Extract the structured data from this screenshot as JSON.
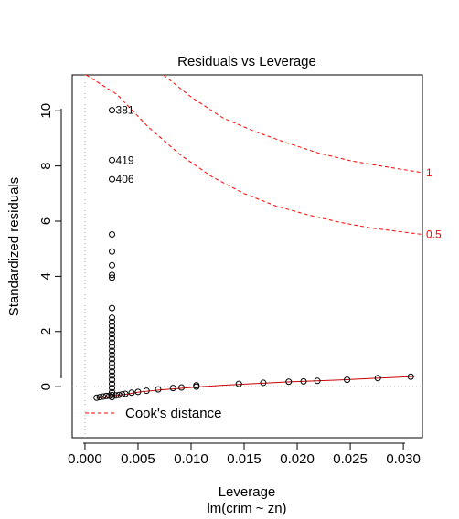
{
  "chart_data": {
    "type": "scatter",
    "title": "Residuals vs Leverage",
    "xlabel": "Leverage",
    "subtitle": "lm(crim ~ zn)",
    "ylabel": "Standardized residuals",
    "xlim": [
      -0.0012,
      0.0318
    ],
    "ylim": [
      -1.85,
      11.3
    ],
    "x_ticks": [
      0.0,
      0.005,
      0.01,
      0.015,
      0.02,
      0.025,
      0.03
    ],
    "x_tick_labels": [
      "0.000",
      "0.005",
      "0.010",
      "0.015",
      "0.020",
      "0.025",
      "0.030"
    ],
    "y_ticks": [
      0,
      2,
      4,
      6,
      8,
      10
    ],
    "y_tick_labels": [
      "0",
      "2",
      "4",
      "6",
      "8",
      "10"
    ],
    "grid": false,
    "reference_lines": {
      "vertical_x": 0,
      "horizontal_y": 0
    },
    "points": [
      {
        "x": 0.00255,
        "y": 10.02,
        "label": "381"
      },
      {
        "x": 0.00255,
        "y": 8.21,
        "label": "419"
      },
      {
        "x": 0.00255,
        "y": 7.52,
        "label": "406"
      },
      {
        "x": 0.00255,
        "y": 5.52
      },
      {
        "x": 0.00255,
        "y": 4.9
      },
      {
        "x": 0.00255,
        "y": 4.4
      },
      {
        "x": 0.00255,
        "y": 4.05
      },
      {
        "x": 0.00255,
        "y": 3.95
      },
      {
        "x": 0.00255,
        "y": 2.85
      },
      {
        "x": 0.00255,
        "y": 2.5
      },
      {
        "x": 0.00255,
        "y": 2.35
      },
      {
        "x": 0.00255,
        "y": 2.2
      },
      {
        "x": 0.00255,
        "y": 2.05
      },
      {
        "x": 0.00255,
        "y": 1.9
      },
      {
        "x": 0.00255,
        "y": 1.75
      },
      {
        "x": 0.00255,
        "y": 1.6
      },
      {
        "x": 0.00255,
        "y": 1.45
      },
      {
        "x": 0.00255,
        "y": 1.3
      },
      {
        "x": 0.00255,
        "y": 1.15
      },
      {
        "x": 0.00255,
        "y": 1.0
      },
      {
        "x": 0.00255,
        "y": 0.85
      },
      {
        "x": 0.00255,
        "y": 0.7
      },
      {
        "x": 0.00255,
        "y": 0.55
      },
      {
        "x": 0.00255,
        "y": 0.4
      },
      {
        "x": 0.00255,
        "y": 0.25
      },
      {
        "x": 0.00255,
        "y": 0.1
      },
      {
        "x": 0.00255,
        "y": -0.05
      },
      {
        "x": 0.00255,
        "y": -0.2
      },
      {
        "x": 0.00255,
        "y": -0.3
      },
      {
        "x": 0.00255,
        "y": -0.38
      },
      {
        "x": 0.0011,
        "y": -0.4
      },
      {
        "x": 0.0014,
        "y": -0.38
      },
      {
        "x": 0.0017,
        "y": -0.36
      },
      {
        "x": 0.002,
        "y": -0.34
      },
      {
        "x": 0.0023,
        "y": -0.33
      },
      {
        "x": 0.0029,
        "y": -0.32
      },
      {
        "x": 0.0032,
        "y": -0.3
      },
      {
        "x": 0.0035,
        "y": -0.28
      },
      {
        "x": 0.0038,
        "y": -0.26
      },
      {
        "x": 0.0044,
        "y": -0.22
      },
      {
        "x": 0.005,
        "y": -0.19
      },
      {
        "x": 0.0058,
        "y": -0.15
      },
      {
        "x": 0.0069,
        "y": -0.1
      },
      {
        "x": 0.0083,
        "y": -0.05
      },
      {
        "x": 0.0091,
        "y": -0.03
      },
      {
        "x": 0.0105,
        "y": 0.0
      },
      {
        "x": 0.0105,
        "y": 0.05
      },
      {
        "x": 0.0145,
        "y": 0.1
      },
      {
        "x": 0.0168,
        "y": 0.14
      },
      {
        "x": 0.0192,
        "y": 0.18
      },
      {
        "x": 0.0206,
        "y": 0.19
      },
      {
        "x": 0.0219,
        "y": 0.21
      },
      {
        "x": 0.0247,
        "y": 0.25
      },
      {
        "x": 0.0276,
        "y": 0.31
      },
      {
        "x": 0.0307,
        "y": 0.36
      }
    ],
    "smoother": [
      [
        0.0011,
        -0.42
      ],
      [
        0.002,
        -0.37
      ],
      [
        0.003,
        -0.32
      ],
      [
        0.004,
        -0.27
      ],
      [
        0.005,
        -0.2
      ],
      [
        0.007,
        -0.12
      ],
      [
        0.009,
        -0.06
      ],
      [
        0.011,
        0.0
      ],
      [
        0.013,
        0.05
      ],
      [
        0.015,
        0.09
      ],
      [
        0.017,
        0.13
      ],
      [
        0.019,
        0.17
      ],
      [
        0.021,
        0.2
      ],
      [
        0.023,
        0.23
      ],
      [
        0.025,
        0.26
      ],
      [
        0.027,
        0.3
      ],
      [
        0.029,
        0.33
      ],
      [
        0.031,
        0.37
      ]
    ],
    "cook_contours": [
      {
        "label": "1",
        "points": [
          [
            0.0074,
            11.5
          ],
          [
            0.01,
            10.5
          ],
          [
            0.013,
            9.74
          ],
          [
            0.016,
            9.25
          ],
          [
            0.019,
            8.84
          ],
          [
            0.022,
            8.47
          ],
          [
            0.025,
            8.19
          ],
          [
            0.028,
            7.99
          ],
          [
            0.0318,
            7.76
          ]
        ]
      },
      {
        "label": "0.5",
        "points": [
          [
            0.0001,
            11.5
          ],
          [
            0.003,
            10.6
          ],
          [
            0.006,
            9.4
          ],
          [
            0.009,
            8.4
          ],
          [
            0.012,
            7.6
          ],
          [
            0.015,
            7.0
          ],
          [
            0.018,
            6.55
          ],
          [
            0.021,
            6.23
          ],
          [
            0.024,
            5.96
          ],
          [
            0.027,
            5.75
          ],
          [
            0.0318,
            5.52
          ]
        ]
      }
    ],
    "legend": {
      "position": "bottom-left",
      "entries": [
        "Cook's distance"
      ]
    },
    "colors": {
      "points": "#000000",
      "smoother": "#cc0000",
      "cook_contour": "#ff0000",
      "reference_line": "#aaaaaa"
    }
  }
}
